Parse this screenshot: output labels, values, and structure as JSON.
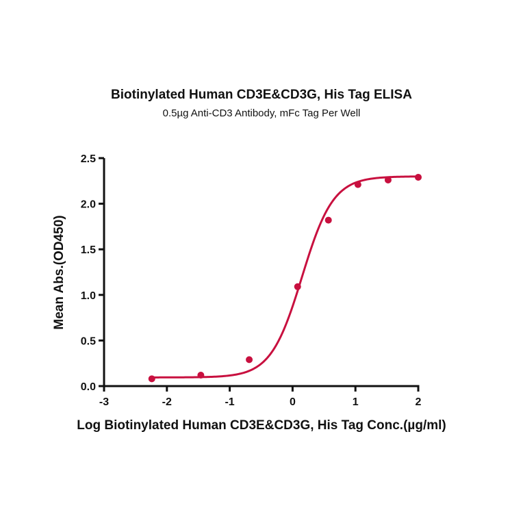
{
  "chart_data": {
    "type": "line",
    "title": "Biotinylated Human CD3E&CD3G, His Tag ELISA",
    "subtitle": "0.5µg Anti-CD3 Antibody, mFc Tag Per Well",
    "xlabel": "Log Biotinylated Human CD3E&CD3G, His Tag Conc.(µg/ml)",
    "ylabel": "Mean Abs.(OD450)",
    "xlim": [
      -3,
      2
    ],
    "ylim": [
      0,
      2.5
    ],
    "x_ticks": [
      "-3",
      "-2",
      "-1",
      "0",
      "1",
      "2"
    ],
    "y_ticks": [
      "0.0",
      "0.5",
      "1.0",
      "1.5",
      "2.0",
      "2.5"
    ],
    "grid": false,
    "legend": null,
    "series": [
      {
        "name": "Biotinylated Human CD3E&CD3G, His Tag",
        "color": "#c8103f",
        "fit": "4PL sigmoidal",
        "x": [
          -2.24,
          -1.46,
          -0.69,
          0.08,
          0.57,
          1.04,
          1.52,
          2.0
        ],
        "y": [
          0.08,
          0.12,
          0.29,
          1.09,
          1.82,
          2.21,
          2.26,
          2.29
        ]
      }
    ]
  }
}
